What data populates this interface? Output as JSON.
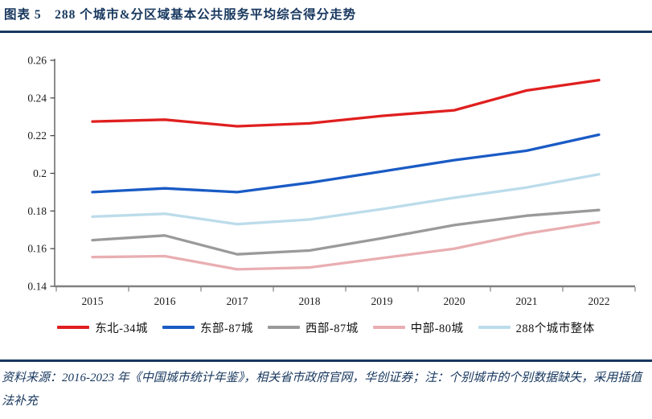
{
  "header": {
    "title": "图表 5　288 个城市&分区域基本公共服务平均综合得分走势"
  },
  "footer": {
    "source_note": "资料来源：2016-2023 年《中国城市统计年鉴》，相关省市政府官网，华创证券；注：个别城市的个别数据缺失，采用插值法补充"
  },
  "colors": {
    "accent_navy": "#17375e",
    "x_axis": "#808080",
    "y_axis": "#404040",
    "tick_text": "#1a1a1a"
  },
  "chart_data": {
    "type": "line",
    "title": "288个城市&分区域基本公共服务平均综合得分走势",
    "x": [
      2015,
      2016,
      2017,
      2018,
      2019,
      2020,
      2021,
      2022
    ],
    "x_labels": [
      "2015",
      "2016",
      "2017",
      "2018",
      "2019",
      "2020",
      "2021",
      "2022"
    ],
    "series": [
      {
        "name": "东北-34城",
        "color": "#e01f1f",
        "values": [
          0.2275,
          0.2285,
          0.225,
          0.2265,
          0.2305,
          0.2335,
          0.244,
          0.2495
        ]
      },
      {
        "name": "东部-87城",
        "color": "#1a5bc5",
        "values": [
          0.19,
          0.192,
          0.19,
          0.195,
          0.201,
          0.207,
          0.212,
          0.2205
        ]
      },
      {
        "name": "西部-87城",
        "color": "#9a9a9a",
        "values": [
          0.1645,
          0.167,
          0.157,
          0.159,
          0.1655,
          0.1725,
          0.1775,
          0.1805
        ]
      },
      {
        "name": "中部-80城",
        "color": "#e9aeb2",
        "values": [
          0.1555,
          0.156,
          0.149,
          0.15,
          0.155,
          0.16,
          0.168,
          0.174
        ]
      },
      {
        "name": "288个城市整体",
        "color": "#bcdcea",
        "values": [
          0.177,
          0.1785,
          0.173,
          0.1755,
          0.181,
          0.187,
          0.1925,
          0.1995
        ]
      }
    ],
    "ylim": [
      0.14,
      0.26
    ],
    "ytick_step": 0.02,
    "ytick_labels_top_to_bottom": [
      "0.26",
      "0.24",
      "0.22",
      "0.2",
      "0.18",
      "0.16",
      "0.14"
    ],
    "grid": false,
    "legend_position": "bottom"
  }
}
